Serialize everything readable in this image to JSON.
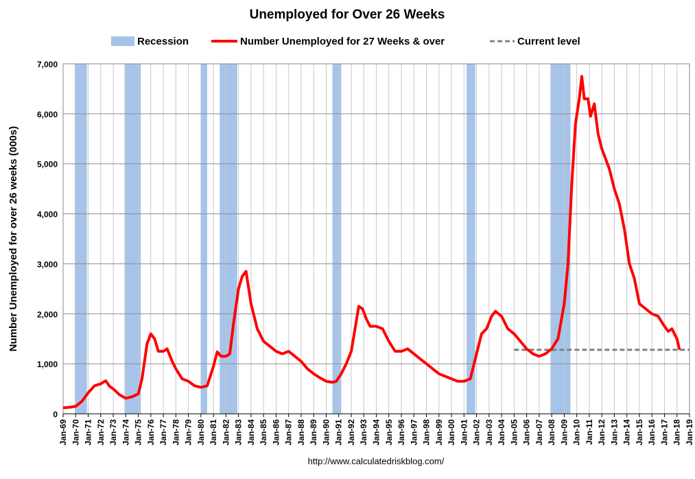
{
  "chart_data": {
    "type": "line",
    "title": "Unemployed for Over 26 Weeks",
    "y_label": "Number Unemployed for over 26 weeks (000s)",
    "source": "http://www.calculatedriskblog.com/",
    "xlim": [
      1969,
      2019
    ],
    "ylim": [
      0,
      7000
    ],
    "grid": true,
    "yticks": [
      0,
      {
        "value": 1000,
        "label": "1,000"
      },
      {
        "value": 2000,
        "label": "2,000"
      },
      {
        "value": 3000,
        "label": "3,000"
      },
      {
        "value": 4000,
        "label": "4,000"
      },
      {
        "value": 5000,
        "label": "5,000"
      },
      {
        "value": 6000,
        "label": "6,000"
      },
      {
        "value": 7000,
        "label": "7,000"
      }
    ],
    "xticks": [
      {
        "value": 1969,
        "label": "Jan-69"
      },
      {
        "value": 1970,
        "label": "Jan-70"
      },
      {
        "value": 1971,
        "label": "Jan-71"
      },
      {
        "value": 1972,
        "label": "Jan-72"
      },
      {
        "value": 1973,
        "label": "Jan-73"
      },
      {
        "value": 1974,
        "label": "Jan-74"
      },
      {
        "value": 1975,
        "label": "Jan-75"
      },
      {
        "value": 1976,
        "label": "Jan-76"
      },
      {
        "value": 1977,
        "label": "Jan-77"
      },
      {
        "value": 1978,
        "label": "Jan-78"
      },
      {
        "value": 1979,
        "label": "Jan-79"
      },
      {
        "value": 1980,
        "label": "Jan-80"
      },
      {
        "value": 1981,
        "label": "Jan-81"
      },
      {
        "value": 1982,
        "label": "Jan-82"
      },
      {
        "value": 1983,
        "label": "Jan-83"
      },
      {
        "value": 1984,
        "label": "Jan-84"
      },
      {
        "value": 1985,
        "label": "Jan-85"
      },
      {
        "value": 1986,
        "label": "Jan-86"
      },
      {
        "value": 1987,
        "label": "Jan-87"
      },
      {
        "value": 1988,
        "label": "Jan-88"
      },
      {
        "value": 1989,
        "label": "Jan-89"
      },
      {
        "value": 1990,
        "label": "Jan-90"
      },
      {
        "value": 1991,
        "label": "Jan-91"
      },
      {
        "value": 1992,
        "label": "Jan-92"
      },
      {
        "value": 1993,
        "label": "Jan-93"
      },
      {
        "value": 1994,
        "label": "Jan-94"
      },
      {
        "value": 1995,
        "label": "Jan-95"
      },
      {
        "value": 1996,
        "label": "Jan-96"
      },
      {
        "value": 1997,
        "label": "Jan-97"
      },
      {
        "value": 1998,
        "label": "Jan-98"
      },
      {
        "value": 1999,
        "label": "Jan-99"
      },
      {
        "value": 2000,
        "label": "Jan-00"
      },
      {
        "value": 2001,
        "label": "Jan-01"
      },
      {
        "value": 2002,
        "label": "Jan-02"
      },
      {
        "value": 2003,
        "label": "Jan-03"
      },
      {
        "value": 2004,
        "label": "Jan-04"
      },
      {
        "value": 2005,
        "label": "Jan-05"
      },
      {
        "value": 2006,
        "label": "Jan-06"
      },
      {
        "value": 2007,
        "label": "Jan-07"
      },
      {
        "value": 2008,
        "label": "Jan-08"
      },
      {
        "value": 2009,
        "label": "Jan-09"
      },
      {
        "value": 2010,
        "label": "Jan-10"
      },
      {
        "value": 2011,
        "label": "Jan-11"
      },
      {
        "value": 2012,
        "label": "Jan-12"
      },
      {
        "value": 2013,
        "label": "Jan-13"
      },
      {
        "value": 2014,
        "label": "Jan-14"
      },
      {
        "value": 2015,
        "label": "Jan-15"
      },
      {
        "value": 2016,
        "label": "Jan-16"
      },
      {
        "value": 2017,
        "label": "Jan-17"
      },
      {
        "value": 2018,
        "label": "Jan-18"
      },
      {
        "value": 2019,
        "label": "Jan-19"
      }
    ],
    "recessions": {
      "name": "Recession",
      "color": "#a6c4ea",
      "periods": [
        [
          1969.93,
          1970.9
        ],
        [
          1973.9,
          1975.2
        ],
        [
          1980.0,
          1980.5
        ],
        [
          1981.5,
          1982.9
        ],
        [
          1990.5,
          1991.2
        ],
        [
          2001.2,
          2001.9
        ],
        [
          2007.9,
          2009.5
        ]
      ]
    },
    "reference_line": {
      "name": "Current level",
      "color": "#808080",
      "value": 1280,
      "from": 2005,
      "to": 2019
    },
    "series": [
      {
        "name": "Number Unemployed for 27 Weeks & over",
        "color": "#ff0000",
        "x": [
          1969.0,
          1969.5,
          1970.0,
          1970.5,
          1971.0,
          1971.5,
          1972.0,
          1972.4,
          1972.7,
          1973.0,
          1973.5,
          1974.0,
          1974.5,
          1975.0,
          1975.3,
          1975.7,
          1976.0,
          1976.3,
          1976.6,
          1977.0,
          1977.3,
          1977.7,
          1978.0,
          1978.5,
          1979.0,
          1979.5,
          1980.0,
          1980.5,
          1981.0,
          1981.3,
          1981.6,
          1982.0,
          1982.3,
          1982.6,
          1983.0,
          1983.3,
          1983.6,
          1984.0,
          1984.5,
          1985.0,
          1985.5,
          1986.0,
          1986.5,
          1987.0,
          1987.5,
          1988.0,
          1988.5,
          1989.0,
          1989.5,
          1990.0,
          1990.5,
          1990.8,
          1991.2,
          1991.6,
          1992.0,
          1992.3,
          1992.6,
          1992.9,
          1993.2,
          1993.5,
          1994.0,
          1994.5,
          1995.0,
          1995.5,
          1996.0,
          1996.5,
          1997.0,
          1997.5,
          1998.0,
          1998.5,
          1999.0,
          1999.5,
          2000.0,
          2000.5,
          2001.0,
          2001.5,
          2002.0,
          2002.4,
          2002.8,
          2003.2,
          2003.5,
          2004.0,
          2004.5,
          2005.0,
          2005.5,
          2006.0,
          2006.5,
          2007.0,
          2007.5,
          2008.0,
          2008.5,
          2009.0,
          2009.3,
          2009.6,
          2009.9,
          2010.2,
          2010.4,
          2010.6,
          2010.9,
          2011.1,
          2011.4,
          2011.7,
          2012.0,
          2012.3,
          2012.6,
          2013.0,
          2013.4,
          2013.8,
          2014.2,
          2014.6,
          2015.0,
          2015.5,
          2016.0,
          2016.5,
          2017.0,
          2017.3,
          2017.6,
          2018.0,
          2018.2
        ],
        "values": [
          120,
          130,
          150,
          250,
          420,
          560,
          600,
          660,
          550,
          500,
          380,
          310,
          340,
          400,
          700,
          1400,
          1600,
          1500,
          1250,
          1250,
          1300,
          1050,
          900,
          700,
          650,
          560,
          530,
          560,
          950,
          1240,
          1150,
          1150,
          1200,
          1800,
          2500,
          2750,
          2850,
          2200,
          1700,
          1450,
          1350,
          1250,
          1200,
          1250,
          1150,
          1050,
          900,
          800,
          720,
          650,
          630,
          650,
          800,
          1000,
          1250,
          1700,
          2150,
          2100,
          1900,
          1750,
          1750,
          1700,
          1450,
          1250,
          1250,
          1300,
          1200,
          1100,
          1000,
          900,
          800,
          750,
          700,
          650,
          650,
          700,
          1200,
          1600,
          1700,
          1950,
          2050,
          1950,
          1700,
          1600,
          1450,
          1300,
          1200,
          1150,
          1200,
          1300,
          1500,
          2200,
          3000,
          4600,
          5800,
          6300,
          6750,
          6300,
          6300,
          5950,
          6200,
          5600,
          5300,
          5100,
          4900,
          4500,
          4200,
          3700,
          3000,
          2700,
          2200,
          2100,
          2000,
          1950,
          1750,
          1650,
          1700,
          1500,
          1280
        ]
      }
    ]
  }
}
